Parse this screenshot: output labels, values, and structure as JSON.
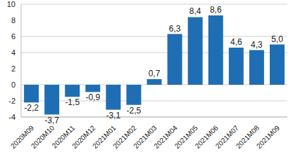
{
  "chart_data": {
    "type": "bar",
    "categories": [
      "2020M09",
      "2020M10",
      "2020M11",
      "2020M12",
      "2021M01",
      "2021M02",
      "2021M03",
      "2021M04",
      "2021M05",
      "2021M06",
      "2021M07",
      "2021M08",
      "2021M09"
    ],
    "values": [
      -2.2,
      -3.7,
      -1.5,
      -0.9,
      -3.1,
      -2.5,
      0.7,
      6.3,
      8.4,
      8.6,
      4.6,
      4.3,
      5.0
    ],
    "value_labels": [
      "-2,2",
      "-3,7",
      "-1,5",
      "-0,9",
      "-3,1",
      "-2,5",
      "0,7",
      "6,3",
      "8,4",
      "8,6",
      "4,6",
      "4,3",
      "5,0"
    ],
    "color": "#1f6eb4",
    "ylim": [
      -4,
      10
    ],
    "yticks": [
      -4,
      -2,
      0,
      2,
      4,
      6,
      8,
      10
    ],
    "grid": true,
    "data_labels": true
  }
}
